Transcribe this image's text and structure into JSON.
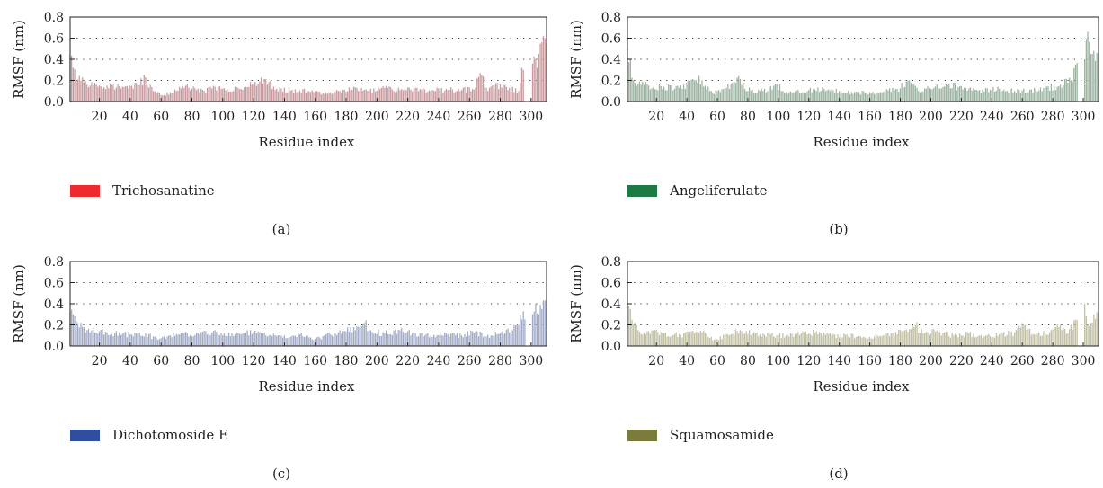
{
  "chart_data": [
    {
      "type": "bar",
      "panel_label": "(a)",
      "legend": "Trichosanatine",
      "bar_color": "#c79a9e",
      "swatch_color": "#ee2a2f",
      "xlabel": "Residue index",
      "ylabel": "RMSF (nm)",
      "ylim": [
        0,
        0.8
      ],
      "xlim": [
        1,
        310
      ],
      "yticks": [
        "0.0",
        "0.2",
        "0.4",
        "0.6",
        "0.8"
      ],
      "xticks": [
        "20",
        "40",
        "60",
        "80",
        "100",
        "120",
        "140",
        "160",
        "180",
        "200",
        "220",
        "240",
        "260",
        "280",
        "300"
      ],
      "grid": "dotted-horizontal",
      "gaps": [
        [
          296,
          300
        ]
      ],
      "peaks": [
        [
          1,
          0.44
        ],
        [
          3,
          0.32
        ],
        [
          5,
          0.2
        ],
        [
          8,
          0.2
        ],
        [
          12,
          0.16
        ],
        [
          20,
          0.15
        ],
        [
          25,
          0.15
        ],
        [
          35,
          0.14
        ],
        [
          45,
          0.15
        ],
        [
          50,
          0.23
        ],
        [
          55,
          0.1
        ],
        [
          60,
          0.06
        ],
        [
          70,
          0.1
        ],
        [
          76,
          0.15
        ],
        [
          80,
          0.12
        ],
        [
          88,
          0.1
        ],
        [
          95,
          0.14
        ],
        [
          100,
          0.12
        ],
        [
          110,
          0.13
        ],
        [
          120,
          0.16
        ],
        [
          128,
          0.21
        ],
        [
          135,
          0.12
        ],
        [
          145,
          0.11
        ],
        [
          155,
          0.1
        ],
        [
          165,
          0.08
        ],
        [
          178,
          0.11
        ],
        [
          185,
          0.14
        ],
        [
          195,
          0.1
        ],
        [
          205,
          0.13
        ],
        [
          215,
          0.11
        ],
        [
          225,
          0.13
        ],
        [
          235,
          0.1
        ],
        [
          245,
          0.12
        ],
        [
          255,
          0.11
        ],
        [
          262,
          0.12
        ],
        [
          268,
          0.25
        ],
        [
          272,
          0.1
        ],
        [
          280,
          0.17
        ],
        [
          286,
          0.13
        ],
        [
          292,
          0.1
        ],
        [
          294,
          0.32
        ],
        [
          295,
          0.3
        ],
        [
          301,
          0.36
        ],
        [
          303,
          0.4
        ],
        [
          305,
          0.45
        ],
        [
          307,
          0.56
        ],
        [
          308,
          0.62
        ],
        [
          309,
          0.6
        ],
        [
          310,
          0.55
        ]
      ]
    },
    {
      "type": "bar",
      "panel_label": "(b)",
      "legend": "Angeliferulate",
      "bar_color": "#9ab29f",
      "swatch_color": "#1d7a45",
      "xlabel": "Residue index",
      "ylabel": "RMSF (nm)",
      "ylim": [
        0,
        0.8
      ],
      "xlim": [
        1,
        310
      ],
      "yticks": [
        "0.0",
        "0.2",
        "0.4",
        "0.6",
        "0.8"
      ],
      "xticks": [
        "20",
        "40",
        "60",
        "80",
        "100",
        "120",
        "140",
        "160",
        "180",
        "200",
        "220",
        "240",
        "260",
        "280",
        "300"
      ],
      "grid": "dotted-horizontal",
      "gaps": [
        [
          297,
          300
        ]
      ],
      "peaks": [
        [
          1,
          0.5
        ],
        [
          3,
          0.4
        ],
        [
          5,
          0.2
        ],
        [
          8,
          0.17
        ],
        [
          15,
          0.15
        ],
        [
          25,
          0.14
        ],
        [
          35,
          0.13
        ],
        [
          45,
          0.2
        ],
        [
          50,
          0.2
        ],
        [
          55,
          0.1
        ],
        [
          62,
          0.09
        ],
        [
          70,
          0.18
        ],
        [
          74,
          0.24
        ],
        [
          78,
          0.12
        ],
        [
          90,
          0.1
        ],
        [
          98,
          0.17
        ],
        [
          105,
          0.09
        ],
        [
          120,
          0.11
        ],
        [
          130,
          0.12
        ],
        [
          140,
          0.1
        ],
        [
          150,
          0.09
        ],
        [
          165,
          0.08
        ],
        [
          178,
          0.12
        ],
        [
          186,
          0.2
        ],
        [
          192,
          0.1
        ],
        [
          202,
          0.13
        ],
        [
          212,
          0.16
        ],
        [
          222,
          0.13
        ],
        [
          232,
          0.11
        ],
        [
          245,
          0.12
        ],
        [
          255,
          0.1
        ],
        [
          265,
          0.11
        ],
        [
          275,
          0.13
        ],
        [
          285,
          0.16
        ],
        [
          292,
          0.2
        ],
        [
          295,
          0.35
        ],
        [
          301,
          0.4
        ],
        [
          303,
          0.66
        ],
        [
          305,
          0.45
        ],
        [
          307,
          0.48
        ],
        [
          309,
          0.46
        ],
        [
          310,
          0.44
        ]
      ]
    },
    {
      "type": "bar",
      "panel_label": "(c)",
      "legend": "Dichotomoside E",
      "bar_color": "#a2abc6",
      "swatch_color": "#2f4e9e",
      "xlabel": "Residue index",
      "ylabel": "RMSF (nm)",
      "ylim": [
        0,
        0.8
      ],
      "xlim": [
        1,
        310
      ],
      "yticks": [
        "0.0",
        "0.2",
        "0.4",
        "0.6",
        "0.8"
      ],
      "xticks": [
        "20",
        "40",
        "60",
        "80",
        "100",
        "120",
        "140",
        "160",
        "180",
        "200",
        "220",
        "240",
        "260",
        "280",
        "300"
      ],
      "grid": "dotted-horizontal",
      "gaps": [
        [
          297,
          300
        ]
      ],
      "peaks": [
        [
          1,
          0.32
        ],
        [
          3,
          0.3
        ],
        [
          5,
          0.24
        ],
        [
          8,
          0.22
        ],
        [
          12,
          0.15
        ],
        [
          20,
          0.14
        ],
        [
          30,
          0.12
        ],
        [
          40,
          0.11
        ],
        [
          50,
          0.12
        ],
        [
          58,
          0.06
        ],
        [
          65,
          0.1
        ],
        [
          75,
          0.12
        ],
        [
          85,
          0.11
        ],
        [
          95,
          0.15
        ],
        [
          100,
          0.1
        ],
        [
          110,
          0.12
        ],
        [
          120,
          0.13
        ],
        [
          130,
          0.1
        ],
        [
          140,
          0.1
        ],
        [
          150,
          0.11
        ],
        [
          160,
          0.07
        ],
        [
          170,
          0.11
        ],
        [
          180,
          0.14
        ],
        [
          188,
          0.18
        ],
        [
          192,
          0.22
        ],
        [
          196,
          0.15
        ],
        [
          205,
          0.12
        ],
        [
          215,
          0.15
        ],
        [
          225,
          0.12
        ],
        [
          235,
          0.1
        ],
        [
          245,
          0.12
        ],
        [
          255,
          0.1
        ],
        [
          262,
          0.14
        ],
        [
          270,
          0.1
        ],
        [
          280,
          0.12
        ],
        [
          288,
          0.15
        ],
        [
          292,
          0.2
        ],
        [
          295,
          0.33
        ],
        [
          301,
          0.3
        ],
        [
          303,
          0.4
        ],
        [
          305,
          0.3
        ],
        [
          307,
          0.35
        ],
        [
          309,
          0.43
        ],
        [
          310,
          0.44
        ]
      ]
    },
    {
      "type": "bar",
      "panel_label": "(d)",
      "legend": "Squamosamide",
      "bar_color": "#c1bfa4",
      "swatch_color": "#7a7a3a",
      "xlabel": "Residue index",
      "ylabel": "RMSF (nm)",
      "ylim": [
        0,
        0.8
      ],
      "xlim": [
        1,
        310
      ],
      "yticks": [
        "0.0",
        "0.2",
        "0.4",
        "0.6",
        "0.8"
      ],
      "xticks": [
        "20",
        "40",
        "60",
        "80",
        "100",
        "120",
        "140",
        "160",
        "180",
        "200",
        "220",
        "240",
        "260",
        "280",
        "300"
      ],
      "grid": "dotted-horizontal",
      "gaps": [
        [
          297,
          300
        ]
      ],
      "peaks": [
        [
          1,
          0.4
        ],
        [
          3,
          0.35
        ],
        [
          5,
          0.2
        ],
        [
          8,
          0.15
        ],
        [
          15,
          0.14
        ],
        [
          25,
          0.12
        ],
        [
          35,
          0.11
        ],
        [
          45,
          0.12
        ],
        [
          50,
          0.13
        ],
        [
          58,
          0.06
        ],
        [
          65,
          0.1
        ],
        [
          75,
          0.15
        ],
        [
          85,
          0.12
        ],
        [
          95,
          0.11
        ],
        [
          105,
          0.1
        ],
        [
          115,
          0.12
        ],
        [
          125,
          0.14
        ],
        [
          135,
          0.1
        ],
        [
          145,
          0.11
        ],
        [
          155,
          0.08
        ],
        [
          165,
          0.1
        ],
        [
          175,
          0.12
        ],
        [
          183,
          0.15
        ],
        [
          190,
          0.2
        ],
        [
          196,
          0.12
        ],
        [
          205,
          0.14
        ],
        [
          215,
          0.1
        ],
        [
          225,
          0.12
        ],
        [
          235,
          0.09
        ],
        [
          245,
          0.11
        ],
        [
          255,
          0.13
        ],
        [
          262,
          0.2
        ],
        [
          268,
          0.11
        ],
        [
          278,
          0.13
        ],
        [
          285,
          0.2
        ],
        [
          290,
          0.12
        ],
        [
          295,
          0.25
        ],
        [
          301,
          0.4
        ],
        [
          303,
          0.2
        ],
        [
          305,
          0.22
        ],
        [
          307,
          0.3
        ],
        [
          309,
          0.32
        ],
        [
          310,
          0.3
        ]
      ]
    }
  ]
}
